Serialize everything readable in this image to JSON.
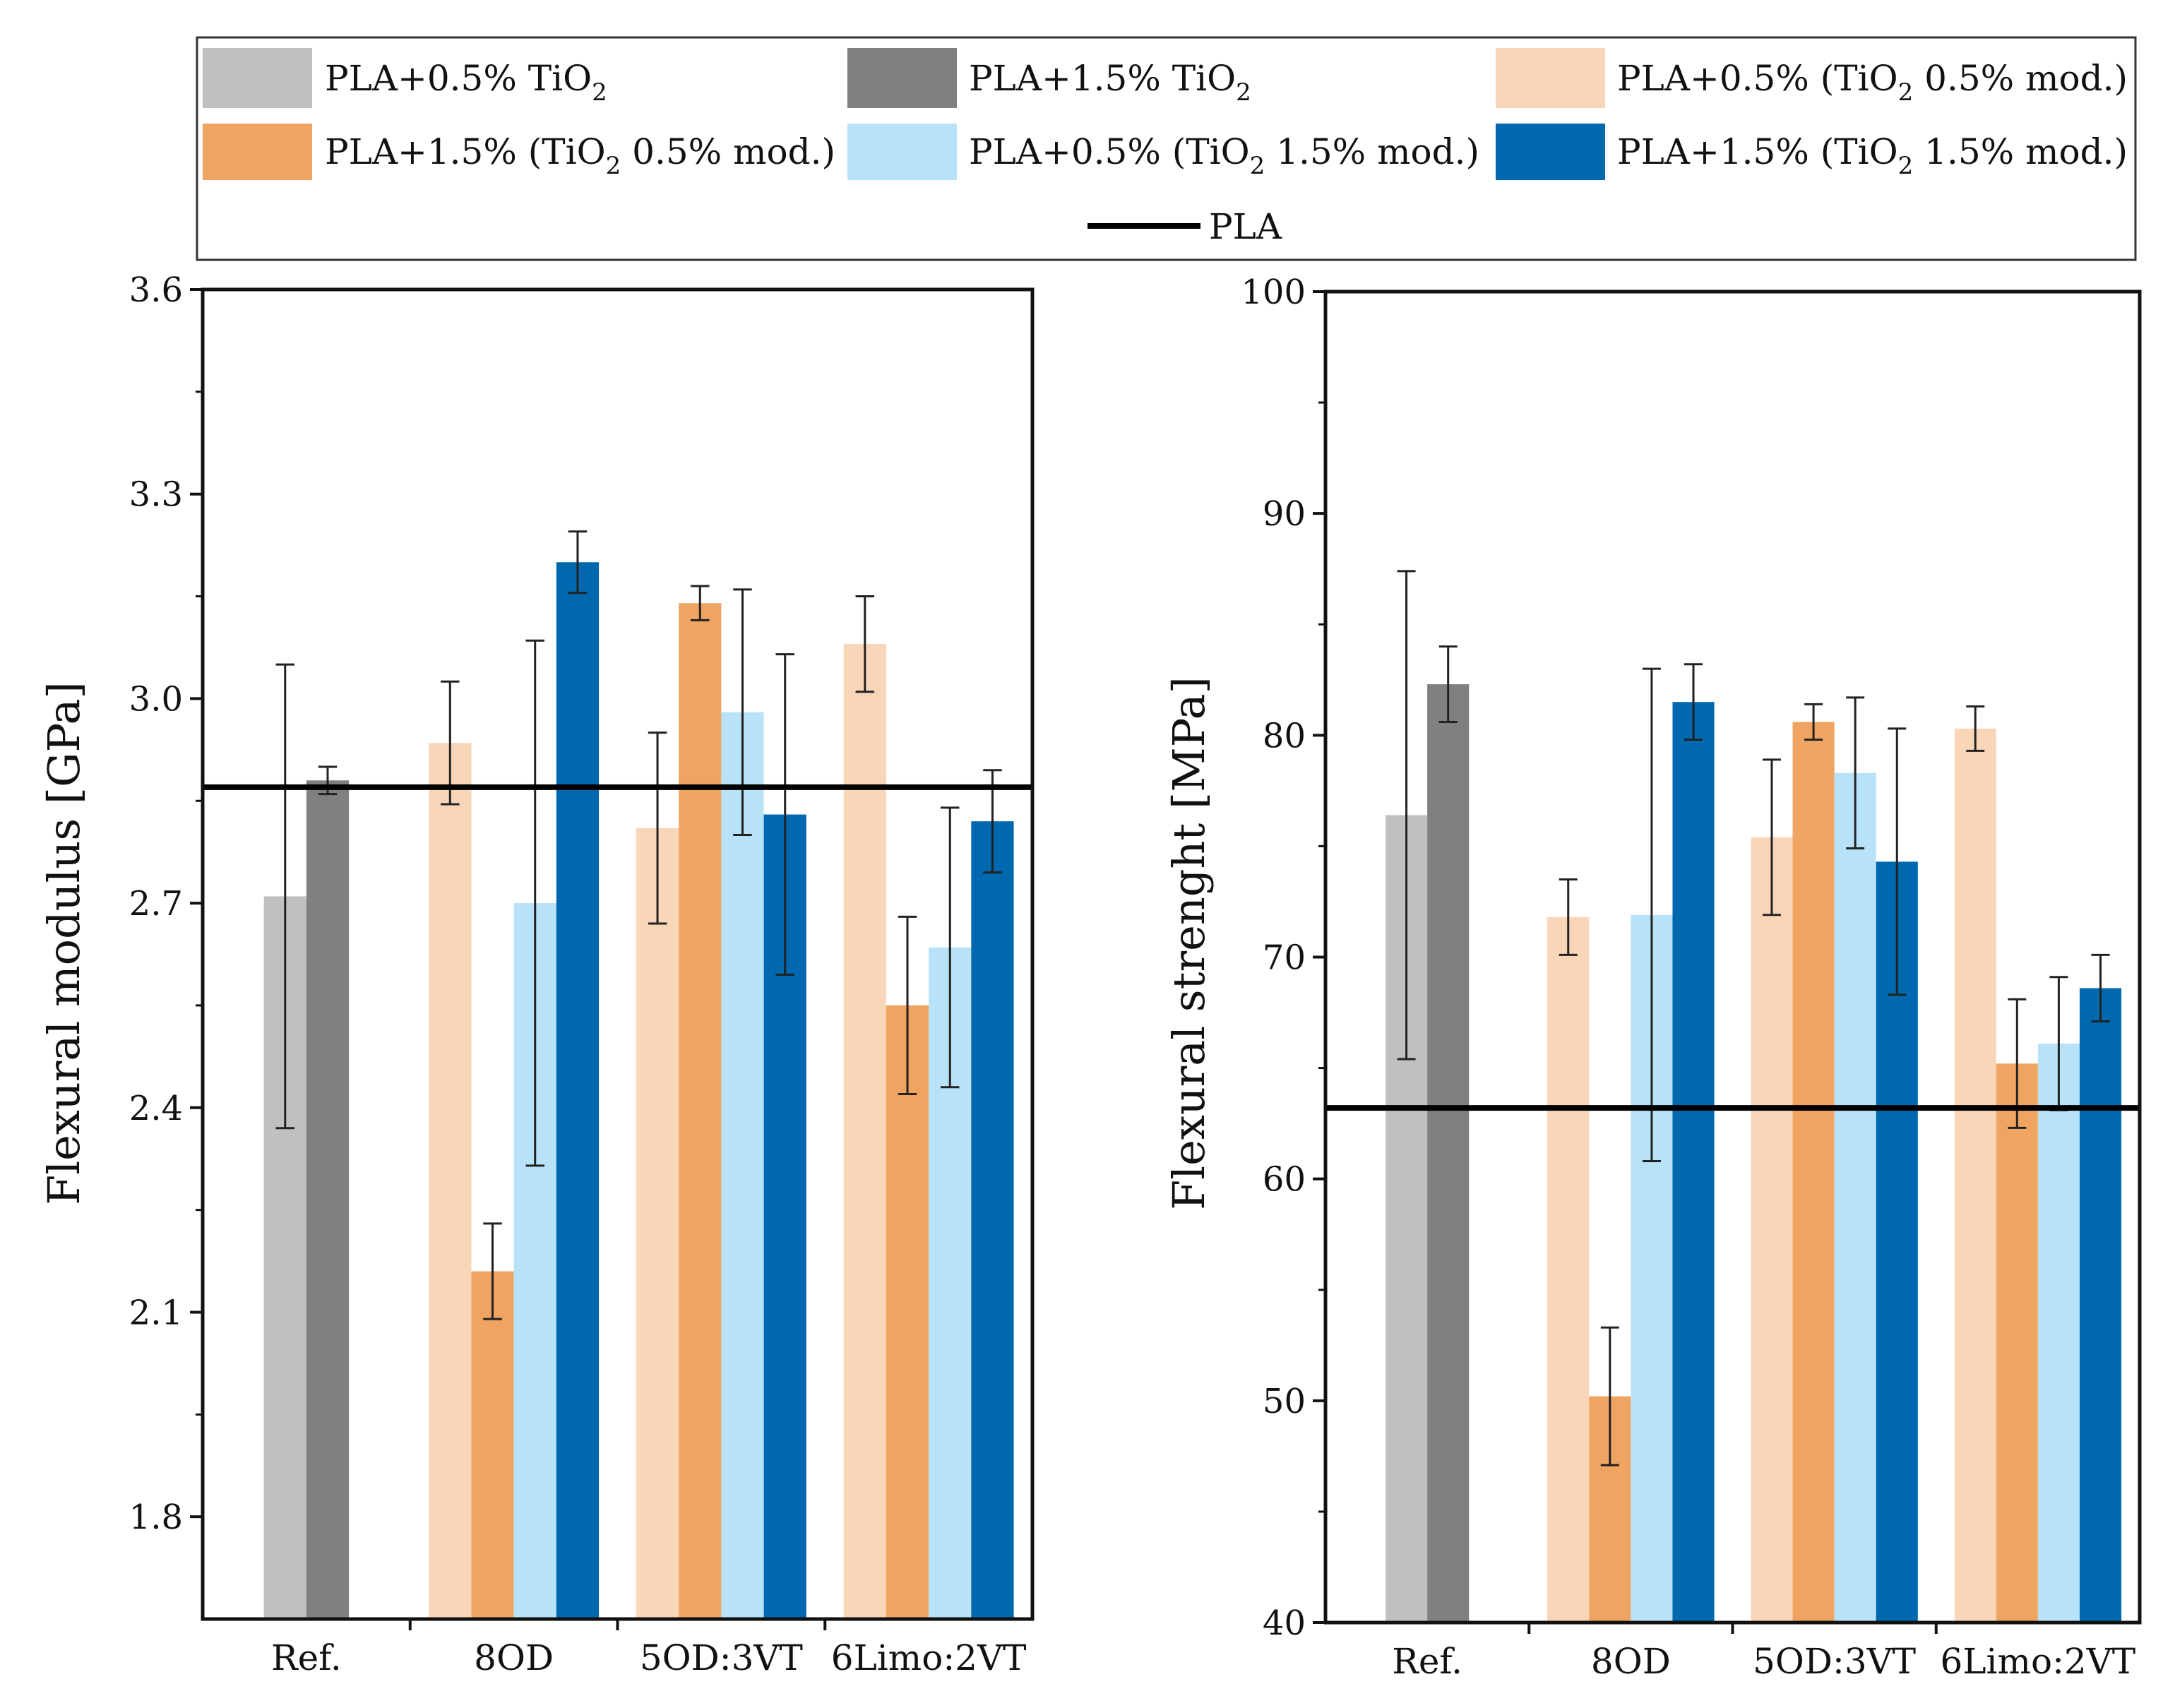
{
  "legend": {
    "items": [
      {
        "key": "s1",
        "text": "PLA+0.5% TiO",
        "sub": "2",
        "tail": ""
      },
      {
        "key": "s2",
        "text": "PLA+1.5% TiO",
        "sub": "2",
        "tail": ""
      },
      {
        "key": "s3",
        "text": "PLA+0.5% (TiO",
        "sub": "2",
        "tail": " 0.5% mod.)"
      },
      {
        "key": "s4",
        "text": "PLA+1.5% (TiO",
        "sub": "2",
        "tail": " 0.5% mod.)"
      },
      {
        "key": "s5",
        "text": "PLA+0.5% (TiO",
        "sub": "2",
        "tail": " 1.5% mod.)"
      },
      {
        "key": "s6",
        "text": "PLA+1.5% (TiO",
        "sub": "2",
        "tail": " 1.5% mod.)"
      }
    ],
    "reference_label": "PLA"
  },
  "colors": {
    "s1": "#c0c0c0",
    "s2": "#808080",
    "s3": "#f9d6b8",
    "s4": "#f0a462",
    "s5": "#b8e2f8",
    "s6": "#0068ae",
    "reference_line": "#000000",
    "error_bar": "#222222"
  },
  "chart_data": [
    {
      "type": "bar",
      "ylabel": "Flexural modulus [GPa]",
      "xlabel": "",
      "ylim": [
        1.65,
        3.6
      ],
      "yticks": [
        1.8,
        2.1,
        2.4,
        2.7,
        3.0,
        3.3,
        3.6
      ],
      "ytick_labels": [
        "1.8",
        "2.1",
        "2.4",
        "2.7",
        "3.0",
        "3.3",
        "3.6"
      ],
      "categories": [
        "Ref.",
        "8OD",
        "5OD:3VT",
        "6Limo:2VT"
      ],
      "reference_line": {
        "label": "PLA",
        "value": 2.87
      },
      "series": [
        {
          "key": "s1",
          "name": "PLA+0.5% TiO2",
          "values": [
            2.71,
            null,
            null,
            null
          ],
          "errors": [
            0.34,
            null,
            null,
            null
          ]
        },
        {
          "key": "s2",
          "name": "PLA+1.5% TiO2",
          "values": [
            2.88,
            null,
            null,
            null
          ],
          "errors": [
            0.02,
            null,
            null,
            null
          ]
        },
        {
          "key": "s3",
          "name": "PLA+0.5% (TiO2 0.5% mod.)",
          "values": [
            null,
            2.935,
            2.81,
            3.08
          ],
          "errors": [
            null,
            0.09,
            0.14,
            0.07
          ]
        },
        {
          "key": "s4",
          "name": "PLA+1.5% (TiO2 0.5% mod.)",
          "values": [
            null,
            2.16,
            3.14,
            2.55
          ],
          "errors": [
            null,
            0.07,
            0.025,
            0.13
          ]
        },
        {
          "key": "s5",
          "name": "PLA+0.5% (TiO2 1.5% mod.)",
          "values": [
            null,
            2.7,
            2.98,
            2.635
          ],
          "errors": [
            null,
            0.385,
            0.18,
            0.205
          ]
        },
        {
          "key": "s6",
          "name": "PLA+1.5% (TiO2 1.5% mod.)",
          "values": [
            null,
            3.2,
            2.83,
            2.82
          ],
          "errors": [
            null,
            0.045,
            0.235,
            0.075
          ]
        }
      ]
    },
    {
      "type": "bar",
      "ylabel": "Flexural strenght [MPa]",
      "xlabel": "",
      "ylim": [
        40,
        100
      ],
      "yticks": [
        40,
        50,
        60,
        70,
        80,
        90,
        100
      ],
      "ytick_labels": [
        "40",
        "50",
        "60",
        "70",
        "80",
        "90",
        "100"
      ],
      "categories": [
        "Ref.",
        "8OD",
        "5OD:3VT",
        "6Limo:2VT"
      ],
      "reference_line": {
        "label": "PLA",
        "value": 63.2
      },
      "series": [
        {
          "key": "s1",
          "name": "PLA+0.5% TiO2",
          "values": [
            76.4,
            null,
            null,
            null
          ],
          "errors": [
            11.0,
            null,
            null,
            null
          ]
        },
        {
          "key": "s2",
          "name": "PLA+1.5% TiO2",
          "values": [
            82.3,
            null,
            null,
            null
          ],
          "errors": [
            1.7,
            null,
            null,
            null
          ]
        },
        {
          "key": "s3",
          "name": "PLA+0.5% (TiO2 0.5% mod.)",
          "values": [
            null,
            71.8,
            75.4,
            80.3
          ],
          "errors": [
            null,
            1.7,
            3.5,
            1.0
          ]
        },
        {
          "key": "s4",
          "name": "PLA+1.5% (TiO2 0.5% mod.)",
          "values": [
            null,
            50.2,
            80.6,
            65.2
          ],
          "errors": [
            null,
            3.1,
            0.8,
            2.9
          ]
        },
        {
          "key": "s5",
          "name": "PLA+0.5% (TiO2 1.5% mod.)",
          "values": [
            null,
            71.9,
            78.3,
            66.1
          ],
          "errors": [
            null,
            11.1,
            3.4,
            3.0
          ]
        },
        {
          "key": "s6",
          "name": "PLA+1.5% (TiO2 1.5% mod.)",
          "values": [
            null,
            81.5,
            74.3,
            68.6
          ],
          "errors": [
            null,
            1.7,
            6.0,
            1.5
          ]
        }
      ]
    }
  ]
}
